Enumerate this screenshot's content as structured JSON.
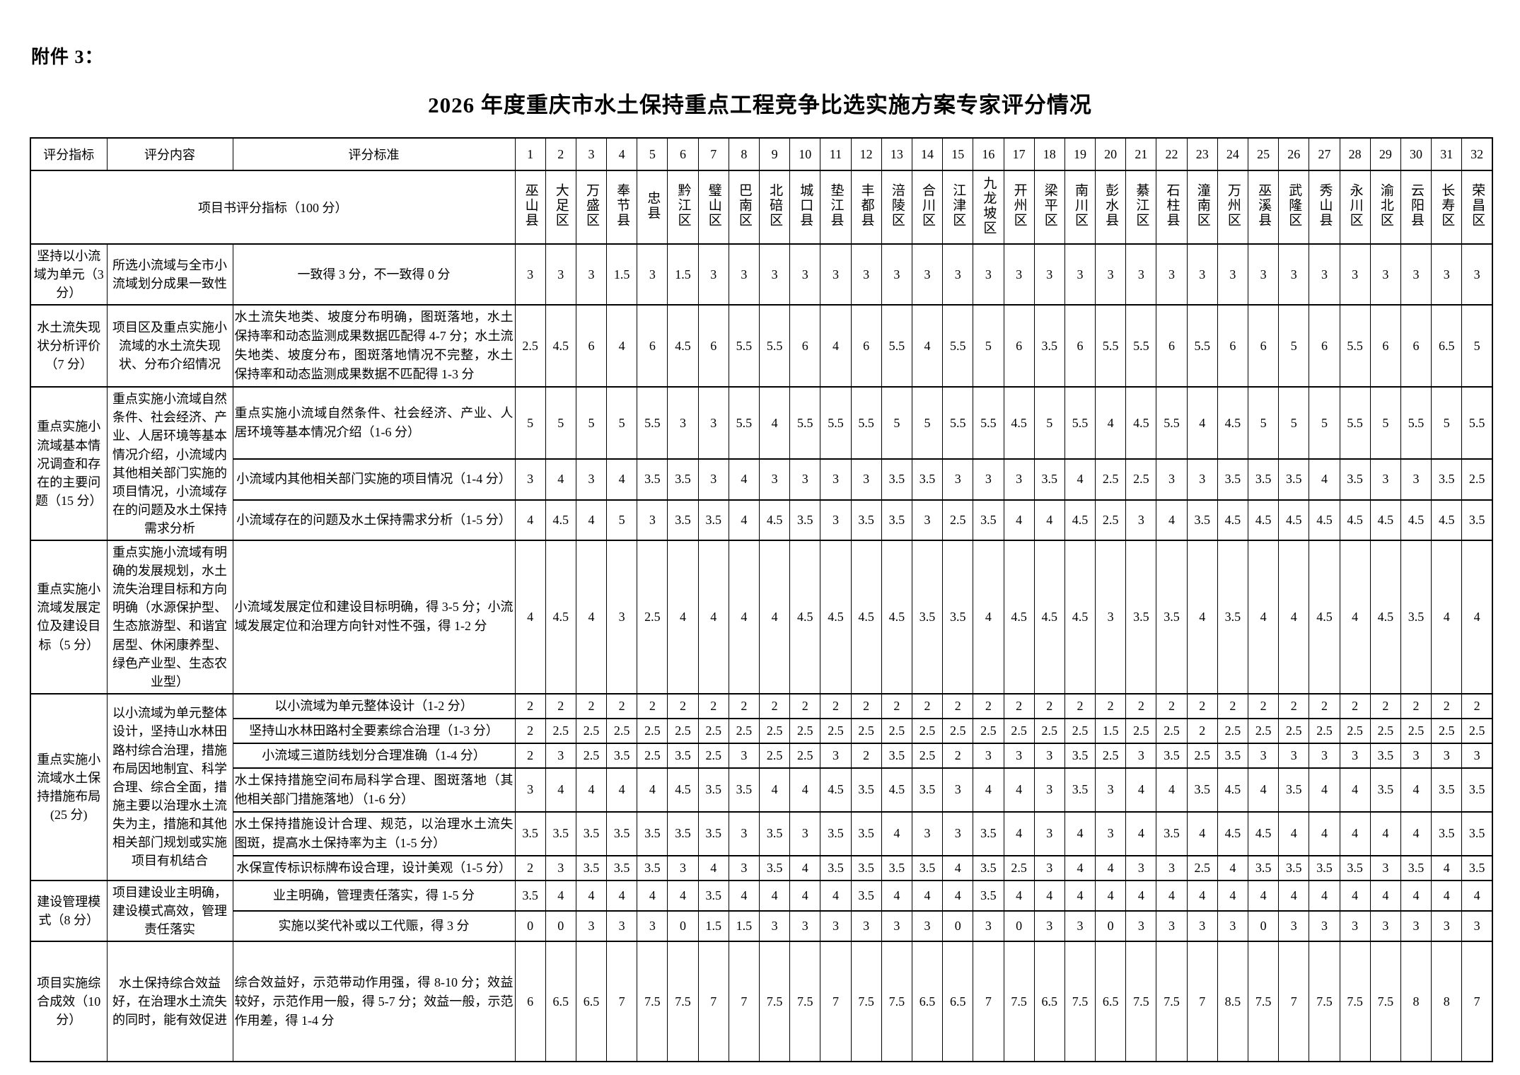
{
  "attachment": "附件 3：",
  "title": "2026 年度重庆市水土保持重点工程竞争比选实施方案专家评分情况",
  "table": {
    "columns": {
      "indicator": "评分指标",
      "content": "评分内容",
      "criteria": "评分标准"
    },
    "expert_numbers": [
      1,
      2,
      3,
      4,
      5,
      6,
      7,
      8,
      9,
      10,
      11,
      12,
      13,
      14,
      15,
      16,
      17,
      18,
      19,
      20,
      21,
      22,
      23,
      24,
      25,
      26,
      27,
      28,
      29,
      30,
      31,
      32
    ],
    "project_header": "项目书评分指标（100 分）",
    "districts": [
      "巫山县",
      "大足区",
      "万盛区",
      "奉节县",
      "忠县",
      "黔江区",
      "璧山区",
      "巴南区",
      "北碚区",
      "城口县",
      "垫江县",
      "丰都县",
      "涪陵区",
      "合川区",
      "江津区",
      "九龙坡区",
      "开州区",
      "梁平区",
      "南川区",
      "彭水县",
      "綦江区",
      "石柱县",
      "潼南区",
      "万州区",
      "巫溪县",
      "武隆区",
      "秀山县",
      "永川区",
      "渝北区",
      "云阳县",
      "长寿区",
      "荣昌区"
    ],
    "sections": [
      {
        "indicator": "坚持以小流域为单元（3 分）",
        "content": "所选小流域与全市小流域划分成果一致性",
        "rows": [
          {
            "criteria": "一致得 3 分，不一致得 0 分",
            "scores": [
              3,
              3,
              3,
              1.5,
              3,
              1.5,
              3,
              3,
              3,
              3,
              3,
              3,
              3,
              3,
              3,
              3,
              3,
              3,
              3,
              3,
              3,
              3,
              3,
              3,
              3,
              3,
              3,
              3,
              3,
              3,
              3,
              3
            ]
          }
        ]
      },
      {
        "indicator": "水土流失现状分析评价（7 分）",
        "content": "项目区及重点实施小流域的水土流失现状、分布介绍情况",
        "rows": [
          {
            "criteria": "水土流失地类、坡度分布明确，图斑落地，水土保持率和动态监测成果数据匹配得 4-7 分；水土流失地类、坡度分布，图斑落地情况不完整，水土保持率和动态监测成果数据不匹配得 1-3 分",
            "scores": [
              2.5,
              4.5,
              6,
              4,
              6,
              4.5,
              6,
              5.5,
              5.5,
              6,
              4,
              6,
              5.5,
              4,
              5.5,
              5,
              6,
              3.5,
              6,
              5.5,
              5.5,
              6,
              5.5,
              6,
              6,
              5,
              6,
              5.5,
              6,
              6,
              6.5,
              5
            ]
          }
        ]
      },
      {
        "indicator": "重点实施小流域基本情况调查和存在的主要问题（15 分）",
        "content": "重点实施小流域自然条件、社会经济、产业、人居环境等基本情况介绍，小流域内其他相关部门实施的项目情况，小流域存在的问题及水土保持需求分析",
        "rows": [
          {
            "criteria": "重点实施小流域自然条件、社会经济、产业、人居环境等基本情况介绍（1-6 分）",
            "scores": [
              5,
              5,
              5,
              5,
              5.5,
              3,
              3,
              5.5,
              4,
              5.5,
              5.5,
              5.5,
              5,
              5,
              5.5,
              5.5,
              4.5,
              5,
              5.5,
              4,
              4.5,
              5.5,
              4,
              4.5,
              5,
              5,
              5,
              5.5,
              5,
              5.5,
              5,
              5.5
            ]
          },
          {
            "criteria": "小流域内其他相关部门实施的项目情况（1-4 分）",
            "scores": [
              3,
              4,
              3,
              4,
              3.5,
              3.5,
              3,
              4,
              3,
              3,
              3,
              3,
              3.5,
              3.5,
              3,
              3,
              3,
              3.5,
              4,
              2.5,
              2.5,
              3,
              3,
              3.5,
              3.5,
              3.5,
              4,
              3.5,
              3,
              3,
              3.5,
              2.5
            ]
          },
          {
            "criteria": "小流域存在的问题及水土保持需求分析（1-5 分）",
            "scores": [
              4,
              4.5,
              4,
              5,
              3,
              3.5,
              3.5,
              4,
              4.5,
              3.5,
              3,
              3.5,
              3.5,
              3,
              2.5,
              3.5,
              4,
              4,
              4.5,
              2.5,
              3,
              4,
              3.5,
              4.5,
              4.5,
              4.5,
              4.5,
              4.5,
              4.5,
              4.5,
              4.5,
              3.5
            ]
          }
        ]
      },
      {
        "indicator": "重点实施小流域发展定位及建设目标（5 分）",
        "content": "重点实施小流域有明确的发展规划，水土流失治理目标和方向明确（水源保护型、生态旅游型、和谐宜居型、休闲康养型、绿色产业型、生态农业型）",
        "rows": [
          {
            "criteria": "小流域发展定位和建设目标明确，得 3-5 分；小流域发展定位和治理方向针对性不强，得 1-2 分",
            "scores": [
              4,
              4.5,
              4,
              3,
              2.5,
              4,
              4,
              4,
              4,
              4.5,
              4.5,
              4.5,
              4.5,
              3.5,
              3.5,
              4,
              4.5,
              4.5,
              4.5,
              3,
              3.5,
              3.5,
              4,
              3.5,
              4,
              4,
              4.5,
              4,
              4.5,
              3.5,
              4,
              4
            ]
          }
        ]
      },
      {
        "indicator": "重点实施小流域水土保持措施布局(25 分)",
        "content": "以小流域为单元整体设计，坚持山水林田路村综合治理，措施布局因地制宜、科学合理、综合全面，措施主要以治理水土流失为主，措施和其他相关部门规划或实施项目有机结合",
        "rows": [
          {
            "criteria": "以小流域为单元整体设计（1-2 分）",
            "scores": [
              2,
              2,
              2,
              2,
              2,
              2,
              2,
              2,
              2,
              2,
              2,
              2,
              2,
              2,
              2,
              2,
              2,
              2,
              2,
              2,
              2,
              2,
              2,
              2,
              2,
              2,
              2,
              2,
              2,
              2,
              2,
              2
            ]
          },
          {
            "criteria": "坚持山水林田路村全要素综合治理（1-3 分）",
            "scores": [
              2,
              2.5,
              2.5,
              2.5,
              2.5,
              2.5,
              2.5,
              2.5,
              2.5,
              2.5,
              2.5,
              2.5,
              2.5,
              2.5,
              2.5,
              2.5,
              2.5,
              2.5,
              2.5,
              1.5,
              2.5,
              2.5,
              2,
              2.5,
              2.5,
              2.5,
              2.5,
              2.5,
              2.5,
              2.5,
              2.5,
              2.5
            ]
          },
          {
            "criteria": "小流域三道防线划分合理准确（1-4 分）",
            "scores": [
              2,
              3,
              2.5,
              3.5,
              2.5,
              3.5,
              2.5,
              3,
              2.5,
              2.5,
              3,
              2,
              3.5,
              2.5,
              2,
              3,
              3,
              3,
              3.5,
              2.5,
              3,
              3.5,
              2.5,
              3.5,
              3,
              3,
              3,
              3,
              3.5,
              3,
              3,
              3
            ]
          },
          {
            "criteria": "水土保持措施空间布局科学合理、图斑落地（其他相关部门措施落地）（1-6 分）",
            "scores": [
              3,
              4,
              4,
              4,
              4,
              4.5,
              3.5,
              3.5,
              4,
              4,
              4.5,
              3.5,
              4.5,
              3.5,
              3,
              4,
              4,
              3,
              3.5,
              3,
              4,
              4,
              3.5,
              4.5,
              4,
              3.5,
              4,
              4,
              3.5,
              4,
              3.5,
              3.5
            ]
          },
          {
            "criteria": "水土保持措施设计合理、规范，以治理水土流失图斑，提高水土保持率为主（1-5 分）",
            "scores": [
              3.5,
              3.5,
              3.5,
              3.5,
              3.5,
              3.5,
              3.5,
              3,
              3.5,
              3,
              3.5,
              3.5,
              4,
              3,
              3,
              3.5,
              4,
              3,
              4,
              3,
              4,
              3.5,
              4,
              4.5,
              4.5,
              4,
              4,
              4,
              4,
              4,
              3.5,
              3.5
            ]
          },
          {
            "criteria": "水保宣传标识标牌布设合理，设计美观（1-5 分）",
            "scores": [
              2,
              3,
              3.5,
              3.5,
              3.5,
              3,
              4,
              3,
              3.5,
              4,
              3.5,
              3.5,
              3.5,
              3.5,
              4,
              3.5,
              2.5,
              3,
              4,
              4,
              3,
              3,
              2.5,
              4,
              3.5,
              3.5,
              3.5,
              3.5,
              3,
              3.5,
              4,
              3.5
            ]
          }
        ]
      },
      {
        "indicator": "建设管理模式（8 分）",
        "content": "项目建设业主明确，建设模式高效，管理责任落实",
        "rows": [
          {
            "criteria": "业主明确，管理责任落实，得 1-5 分",
            "scores": [
              3.5,
              4,
              4,
              4,
              4,
              4,
              3.5,
              4,
              4,
              4,
              4,
              3.5,
              4,
              4,
              4,
              3.5,
              4,
              4,
              4,
              4,
              4,
              4,
              4,
              4,
              4,
              4,
              4,
              4,
              4,
              4,
              4,
              4
            ]
          },
          {
            "criteria": "实施以奖代补或以工代赈，得 3 分",
            "scores": [
              0,
              0,
              3,
              3,
              3,
              0,
              1.5,
              1.5,
              3,
              3,
              3,
              3,
              3,
              3,
              0,
              3,
              0,
              3,
              3,
              0,
              3,
              3,
              3,
              3,
              0,
              3,
              3,
              3,
              3,
              3,
              3,
              3
            ]
          }
        ]
      },
      {
        "indicator": "项目实施综合成效（10 分）",
        "content": "水土保持综合效益好，在治理水土流失的同时，能有效促进",
        "rows": [
          {
            "criteria": "综合效益好，示范带动作用强，得 8-10 分；效益较好，示范作用一般，得 5-7 分；效益一般，示范作用差，得 1-4 分",
            "scores": [
              6,
              6.5,
              6.5,
              7,
              7.5,
              7.5,
              7,
              7,
              7.5,
              7.5,
              7,
              7.5,
              7.5,
              6.5,
              6.5,
              7,
              7.5,
              6.5,
              7.5,
              6.5,
              7.5,
              7.5,
              7,
              8.5,
              7.5,
              7,
              7.5,
              7.5,
              7.5,
              8,
              8,
              7
            ]
          }
        ]
      }
    ]
  }
}
